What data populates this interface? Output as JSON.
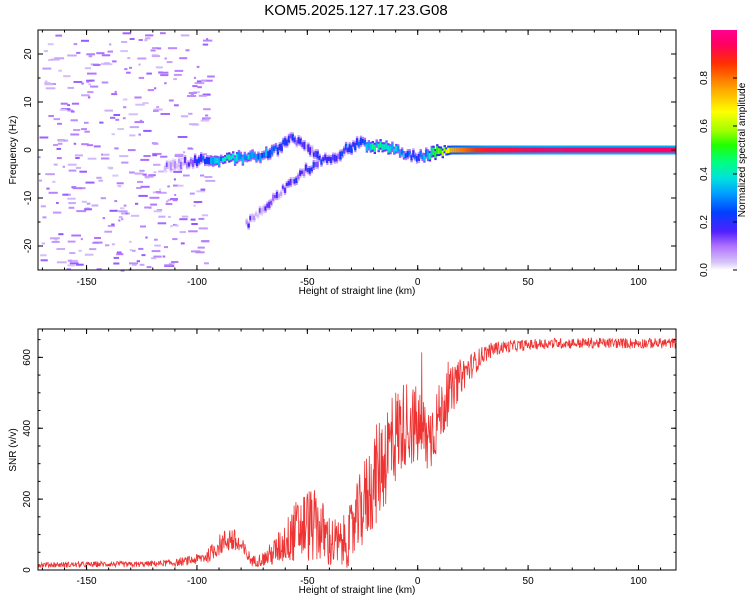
{
  "chart_data": [
    {
      "type": "heatmap",
      "title": "KOM5.2025.127.17.23.G08",
      "xlabel": "Height of straight line (km)",
      "ylabel": "Frequency (Hz)",
      "xlim": [
        -172,
        117
      ],
      "ylim": [
        -25,
        25
      ],
      "xticks": [
        -150,
        -100,
        -50,
        0,
        50,
        100
      ],
      "yticks": [
        -20,
        -10,
        0,
        10,
        20
      ],
      "colorbar": {
        "label": "Normalized spectral amplitude",
        "range": [
          0,
          1
        ],
        "ticks": [
          "0.0",
          "0.2",
          "0.4",
          "0.6",
          "0.8"
        ]
      },
      "ridge": [
        {
          "x": -115,
          "y": -3.5,
          "amp": 0.08
        },
        {
          "x": -105,
          "y": -2.5,
          "amp": 0.1
        },
        {
          "x": -95,
          "y": -2.0,
          "amp": 0.25
        },
        {
          "x": -85,
          "y": -1.8,
          "amp": 0.4
        },
        {
          "x": -78,
          "y": -1.5,
          "amp": 0.35
        },
        {
          "x": -70,
          "y": -1.0,
          "amp": 0.3
        },
        {
          "x": -63,
          "y": 0.5,
          "amp": 0.2
        },
        {
          "x": -58,
          "y": 2.5,
          "amp": 0.2
        },
        {
          "x": -50,
          "y": 0.5,
          "amp": 0.1
        },
        {
          "x": -45,
          "y": -2.0,
          "amp": 0.2
        },
        {
          "x": -38,
          "y": -1.5,
          "amp": 0.15
        },
        {
          "x": -33,
          "y": 0.0,
          "amp": 0.2
        },
        {
          "x": -28,
          "y": 1.5,
          "amp": 0.25
        },
        {
          "x": -20,
          "y": 0.8,
          "amp": 0.4
        },
        {
          "x": -12,
          "y": 0.5,
          "amp": 0.35
        },
        {
          "x": -5,
          "y": -1.0,
          "amp": 0.3
        },
        {
          "x": 0,
          "y": -1.5,
          "amp": 0.2
        },
        {
          "x": 5,
          "y": -0.8,
          "amp": 0.4
        },
        {
          "x": 10,
          "y": -0.3,
          "amp": 0.55
        },
        {
          "x": 15,
          "y": 0.0,
          "amp": 0.75
        },
        {
          "x": 30,
          "y": 0.0,
          "amp": 0.9
        },
        {
          "x": 60,
          "y": 0.0,
          "amp": 0.95
        },
        {
          "x": 117,
          "y": 0.0,
          "amp": 0.95
        }
      ],
      "secondary_branch": [
        {
          "x": -78,
          "y": -15.5,
          "amp": 0.1
        },
        {
          "x": -72,
          "y": -13.0,
          "amp": 0.1
        },
        {
          "x": -66,
          "y": -10.0,
          "amp": 0.12
        },
        {
          "x": -58,
          "y": -7.0,
          "amp": 0.12
        },
        {
          "x": -52,
          "y": -4.5,
          "amp": 0.15
        },
        {
          "x": -45,
          "y": -2.5,
          "amp": 0.2
        }
      ]
    },
    {
      "type": "line",
      "xlabel": "Height of straight line (km)",
      "ylabel": "SNR (v/v)",
      "xlim": [
        -172,
        117
      ],
      "ylim": [
        0,
        680
      ],
      "xticks": [
        -150,
        -100,
        -50,
        0,
        50,
        100
      ],
      "yticks": [
        0,
        200,
        400,
        600
      ],
      "color": "#ee3333",
      "series": [
        {
          "x": [
            -172,
            -160,
            -150,
            -140,
            -130,
            -120,
            -110,
            -100,
            -95,
            -90,
            -85,
            -80,
            -75,
            -70,
            -65,
            -60,
            -55,
            -50,
            -45,
            -40,
            -35,
            -30,
            -25,
            -20,
            -15,
            -10,
            -5,
            0,
            5,
            10,
            15,
            20,
            25,
            30,
            35,
            40,
            50,
            60,
            70,
            80,
            90,
            100,
            110,
            117
          ],
          "y": [
            15,
            15,
            15,
            17,
            15,
            18,
            20,
            30,
            40,
            70,
            90,
            65,
            25,
            30,
            50,
            80,
            110,
            130,
            120,
            80,
            70,
            100,
            180,
            250,
            320,
            380,
            420,
            400,
            370,
            440,
            500,
            550,
            580,
            610,
            625,
            630,
            635,
            640,
            640,
            640,
            640,
            640,
            640,
            640
          ],
          "spread": [
            8,
            8,
            8,
            8,
            8,
            8,
            10,
            15,
            20,
            30,
            40,
            30,
            15,
            20,
            40,
            60,
            90,
            110,
            100,
            80,
            70,
            90,
            120,
            140,
            150,
            140,
            120,
            120,
            110,
            90,
            70,
            50,
            35,
            25,
            20,
            18,
            15,
            15,
            15,
            15,
            15,
            15,
            15,
            15
          ]
        }
      ]
    }
  ]
}
